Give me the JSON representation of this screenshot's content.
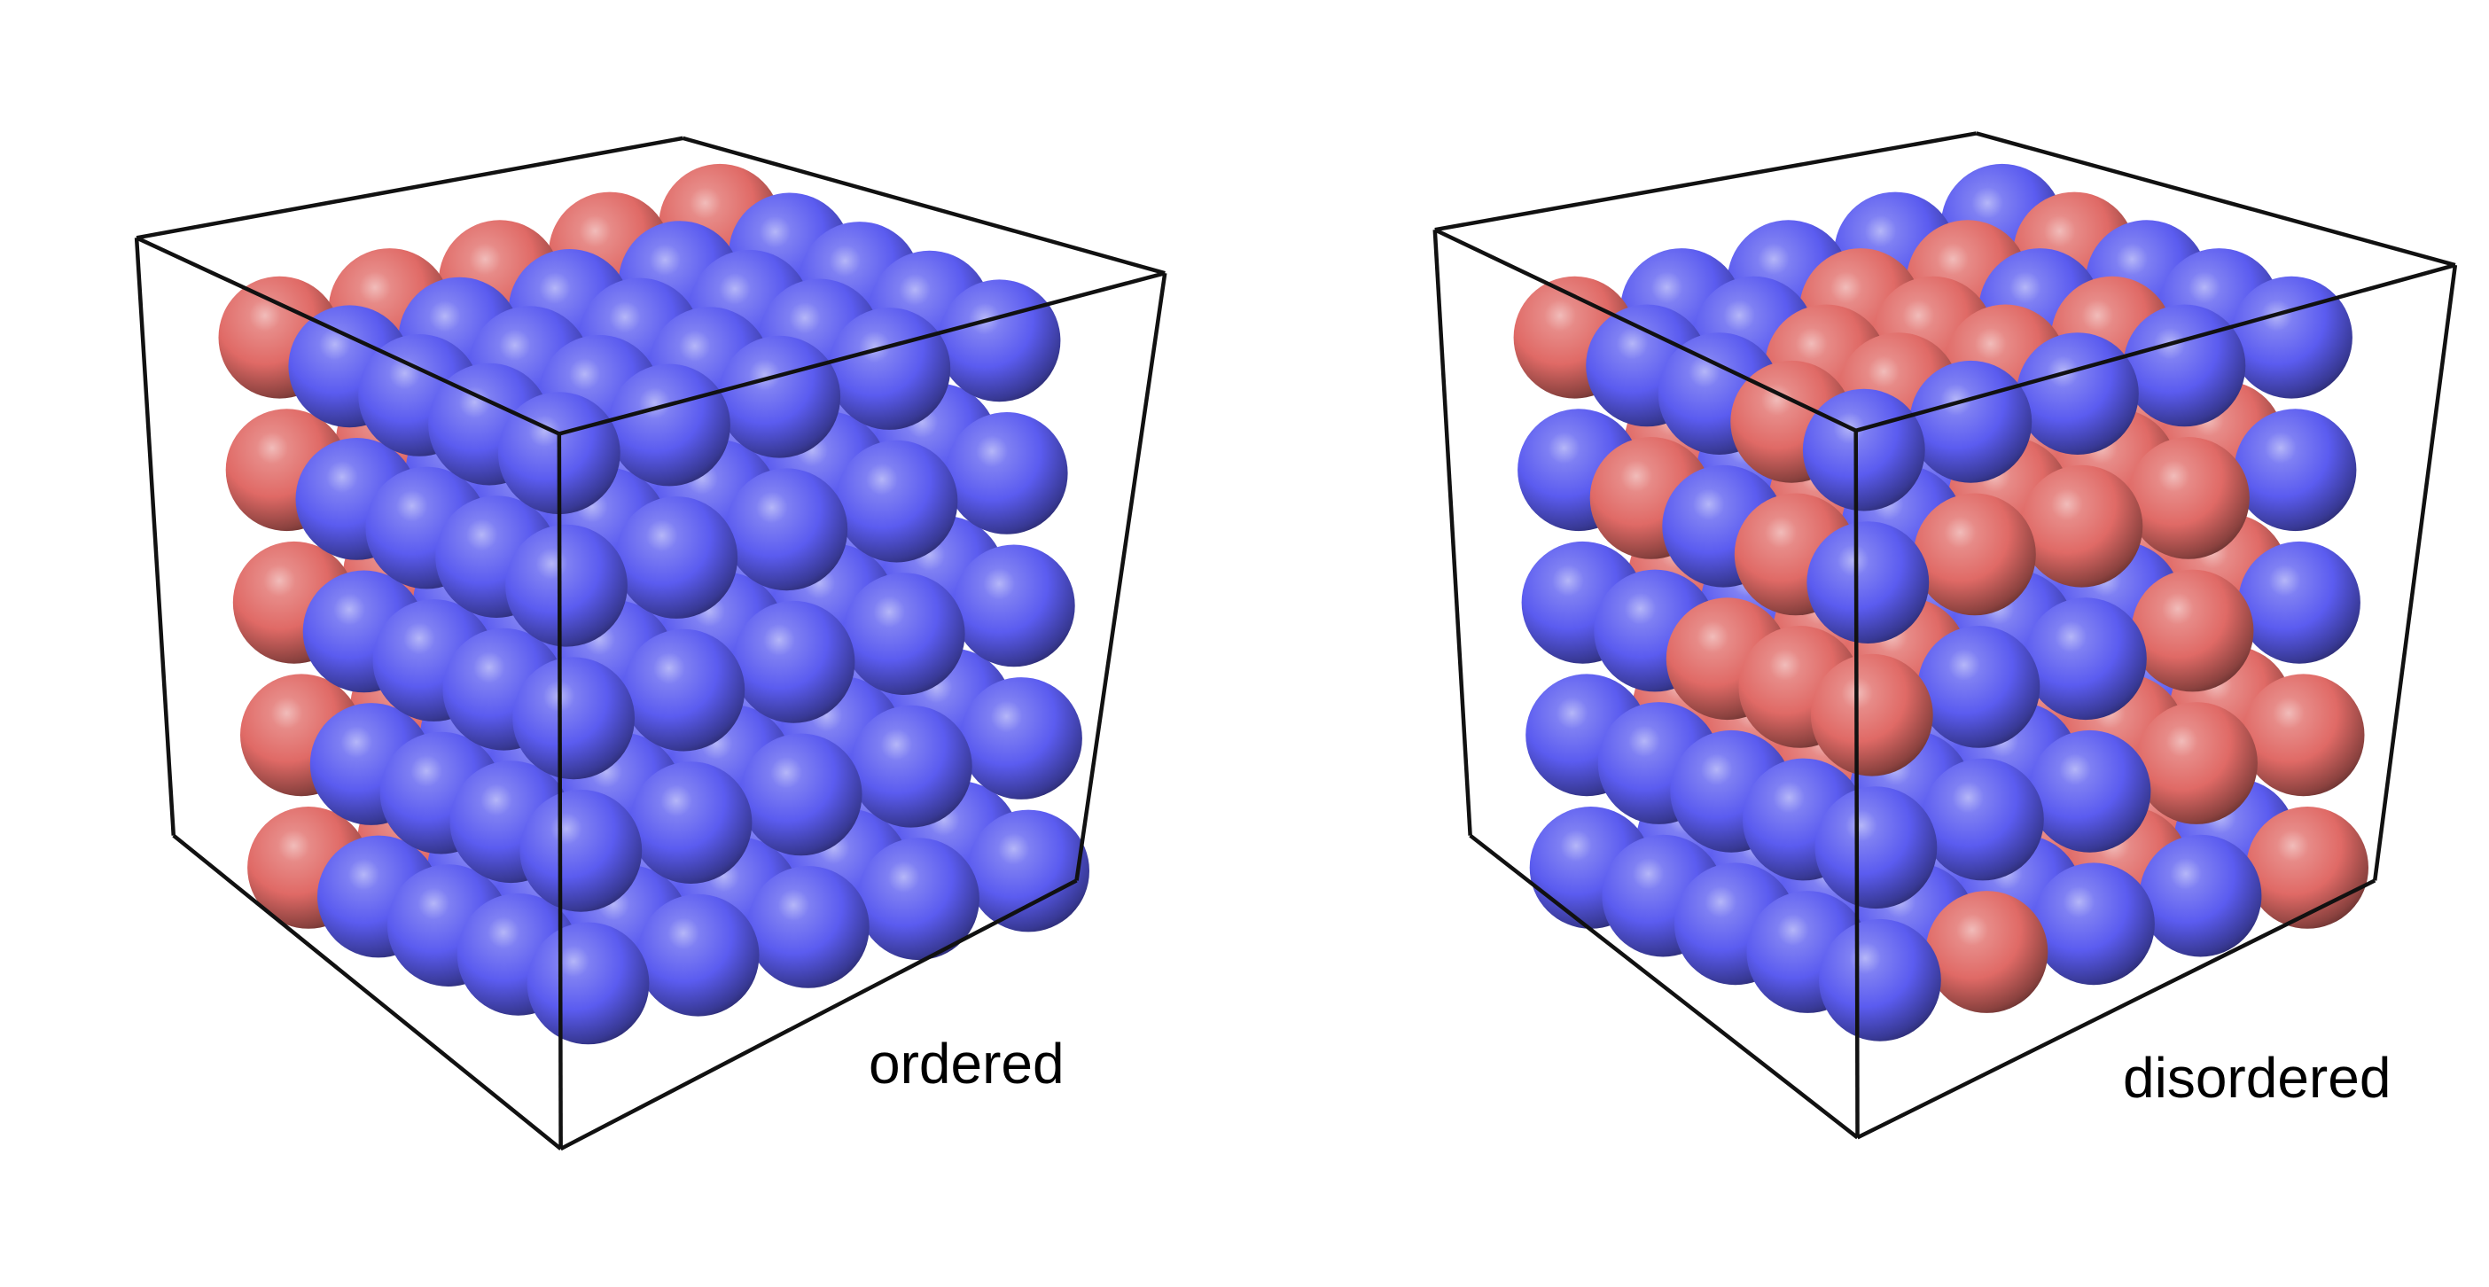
{
  "colors": {
    "red_atom": "#e06a66",
    "blue_atom": "#5b5cf0",
    "box_edge": "#111111",
    "background": "#ffffff"
  },
  "panels": [
    {
      "id": "ordered",
      "label": "ordered",
      "arrangement": "ordered",
      "lattice": [
        5,
        5,
        5
      ]
    },
    {
      "id": "disordered",
      "label": "disordered",
      "arrangement": "disordered",
      "lattice": [
        5,
        5,
        5
      ]
    }
  ]
}
